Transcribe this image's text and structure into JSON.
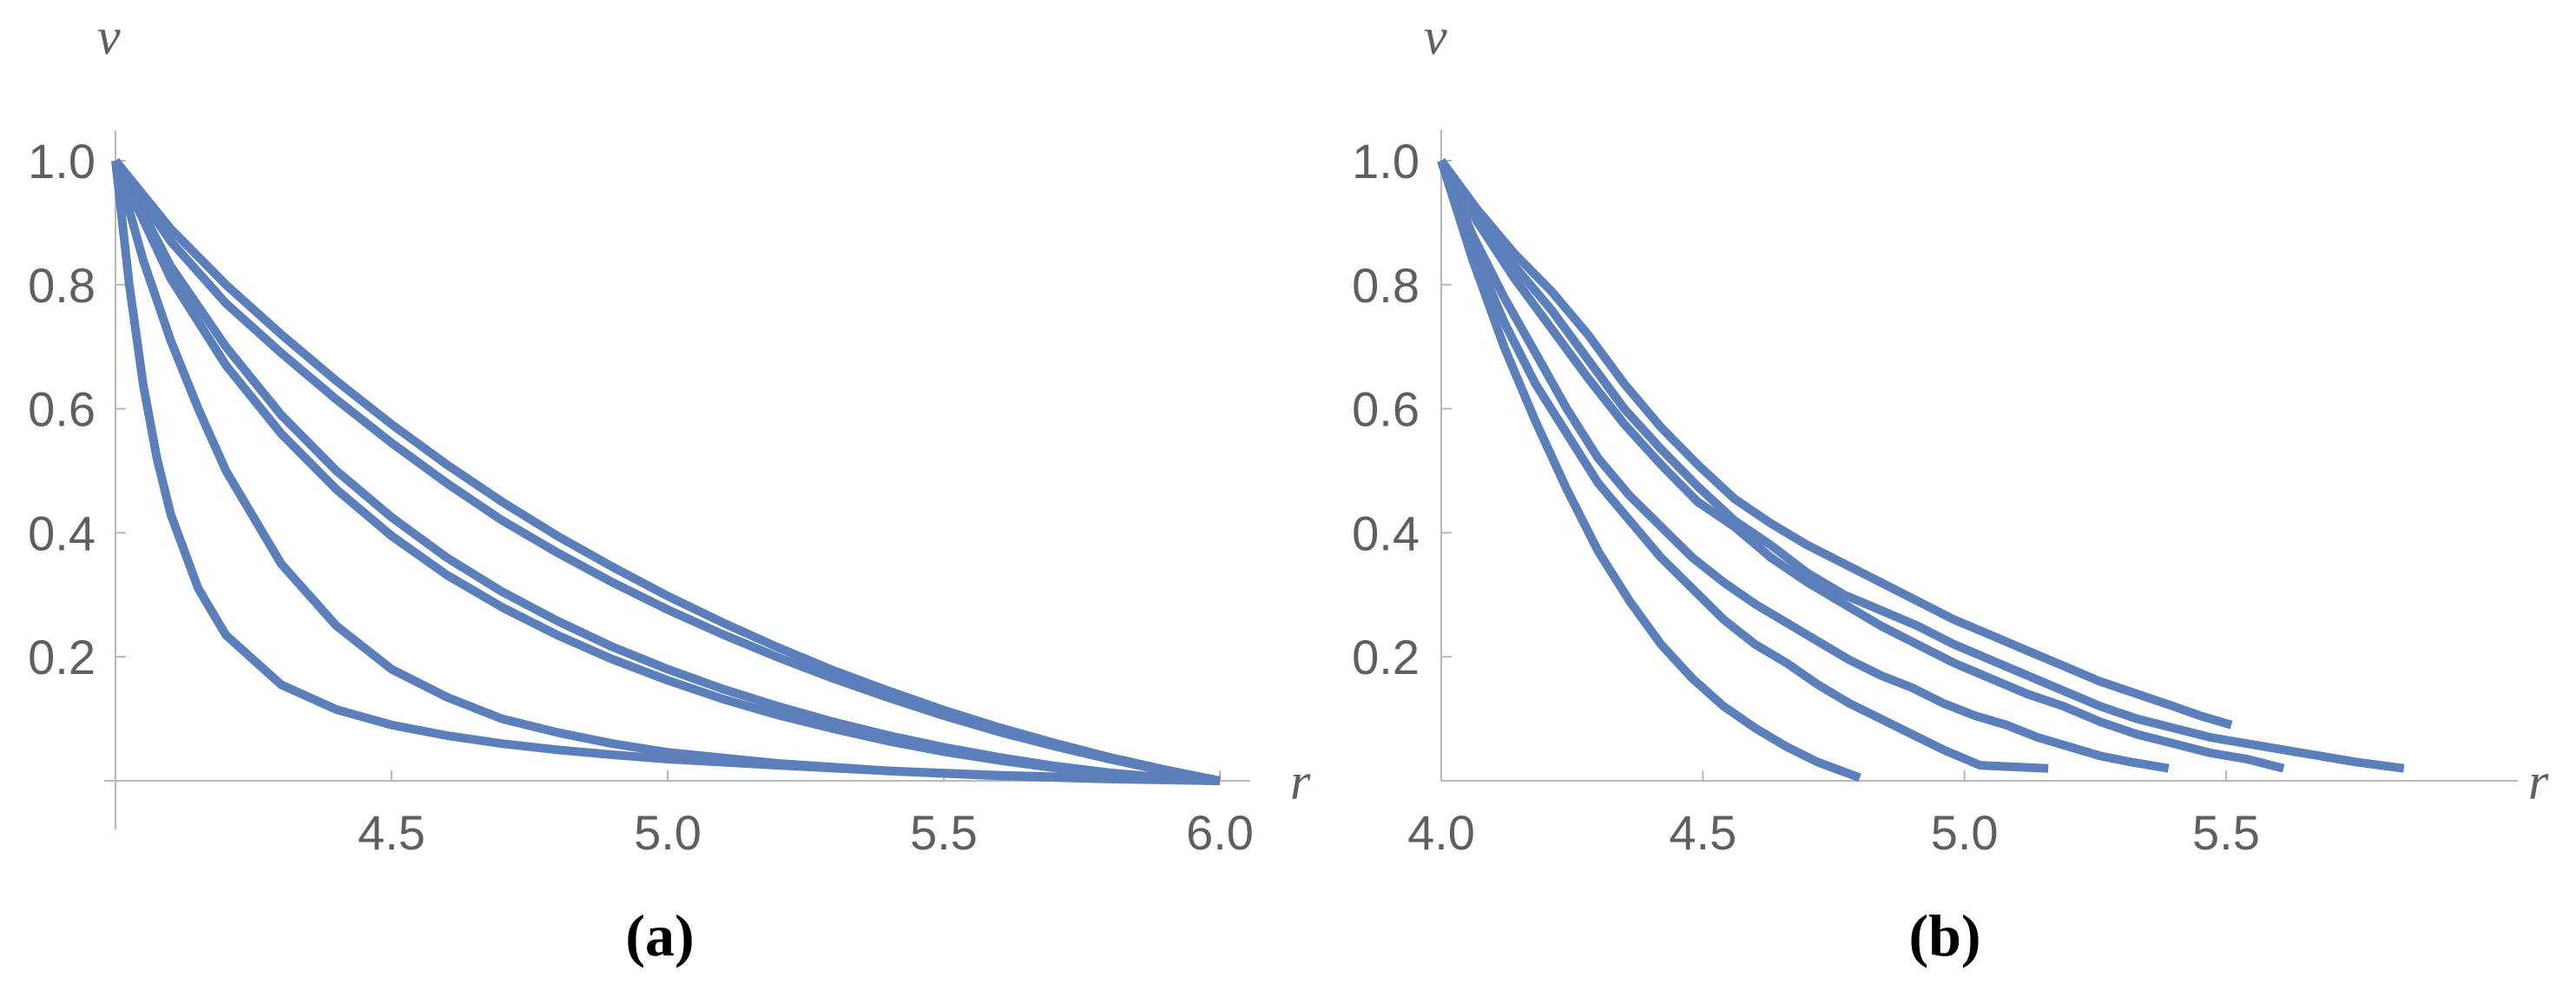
{
  "colors": {
    "line": "#5b7fba",
    "axis": "#b8b8b8",
    "text": "#5f5f5f"
  },
  "chart_data": [
    {
      "type": "line",
      "caption": "(a)",
      "xlabel": "r",
      "ylabel": "v",
      "xlim": [
        4.0,
        6.0
      ],
      "ylim": [
        0.0,
        1.05
      ],
      "xticks": [
        "4.5",
        "5.0",
        "5.5",
        "6.0"
      ],
      "yticks": [
        "0.2",
        "0.4",
        "0.6",
        "0.8",
        "1.0"
      ],
      "series": [
        {
          "x": [
            4.0,
            4.1,
            4.2,
            4.3,
            4.4,
            4.5,
            4.6,
            4.7,
            4.8,
            4.9,
            5.0,
            5.1,
            5.2,
            5.3,
            5.4,
            5.5,
            5.6,
            5.7,
            5.8,
            5.9,
            6.0
          ],
          "values": [
            1.0,
            0.89,
            0.8,
            0.72,
            0.645,
            0.575,
            0.51,
            0.45,
            0.395,
            0.345,
            0.298,
            0.255,
            0.215,
            0.178,
            0.145,
            0.114,
            0.086,
            0.061,
            0.038,
            0.018,
            0.0
          ]
        },
        {
          "x": [
            4.0,
            4.1,
            4.2,
            4.3,
            4.4,
            4.5,
            4.6,
            4.7,
            4.8,
            4.9,
            5.0,
            5.1,
            5.2,
            5.3,
            5.4,
            5.5,
            5.6,
            5.7,
            5.8,
            5.9,
            6.0
          ],
          "values": [
            1.0,
            0.87,
            0.77,
            0.69,
            0.615,
            0.545,
            0.48,
            0.42,
            0.368,
            0.32,
            0.276,
            0.236,
            0.199,
            0.165,
            0.134,
            0.105,
            0.079,
            0.056,
            0.035,
            0.016,
            0.0
          ]
        },
        {
          "x": [
            4.0,
            4.1,
            4.2,
            4.3,
            4.4,
            4.5,
            4.6,
            4.7,
            4.8,
            4.9,
            5.0,
            5.1,
            5.2,
            5.3,
            5.4,
            5.5,
            5.6,
            5.7,
            5.8,
            5.9,
            6.0
          ],
          "values": [
            1.0,
            0.83,
            0.7,
            0.59,
            0.5,
            0.425,
            0.36,
            0.305,
            0.258,
            0.216,
            0.18,
            0.148,
            0.12,
            0.095,
            0.073,
            0.054,
            0.038,
            0.024,
            0.013,
            0.005,
            0.0
          ]
        },
        {
          "x": [
            4.0,
            4.1,
            4.2,
            4.3,
            4.4,
            4.5,
            4.6,
            4.7,
            4.8,
            4.9,
            5.0,
            5.1,
            5.2,
            5.3,
            5.4,
            5.5,
            5.6,
            5.7,
            5.8,
            5.9,
            6.0
          ],
          "values": [
            1.0,
            0.81,
            0.67,
            0.56,
            0.47,
            0.395,
            0.332,
            0.28,
            0.235,
            0.196,
            0.162,
            0.132,
            0.106,
            0.084,
            0.064,
            0.047,
            0.033,
            0.021,
            0.011,
            0.004,
            0.0
          ]
        },
        {
          "x": [
            4.0,
            4.05,
            4.1,
            4.15,
            4.2,
            4.3,
            4.4,
            4.5,
            4.6,
            4.7,
            4.8,
            4.9,
            5.0,
            5.2,
            5.4,
            5.6,
            5.8,
            6.0
          ],
          "values": [
            1.0,
            0.84,
            0.71,
            0.6,
            0.5,
            0.35,
            0.25,
            0.18,
            0.135,
            0.1,
            0.078,
            0.06,
            0.046,
            0.028,
            0.016,
            0.008,
            0.003,
            0.0
          ]
        },
        {
          "x": [
            4.0,
            4.025,
            4.05,
            4.075,
            4.1,
            4.15,
            4.2,
            4.3,
            4.4,
            4.5,
            4.6,
            4.7,
            4.8,
            4.9,
            5.0,
            5.2,
            5.4,
            5.6,
            5.8,
            6.0
          ],
          "values": [
            1.0,
            0.8,
            0.64,
            0.52,
            0.43,
            0.31,
            0.235,
            0.155,
            0.115,
            0.09,
            0.073,
            0.06,
            0.05,
            0.042,
            0.035,
            0.025,
            0.016,
            0.009,
            0.004,
            0.0
          ]
        }
      ]
    },
    {
      "type": "line",
      "caption": "(b)",
      "xlabel": "r",
      "ylabel": "v",
      "xlim": [
        4.0,
        5.9
      ],
      "ylim": [
        0.0,
        1.05
      ],
      "xticks": [
        "4.0",
        "4.5",
        "5.0",
        "5.5"
      ],
      "yticks": [
        "0.2",
        "0.4",
        "0.6",
        "0.8",
        "1.0"
      ],
      "series": [
        {
          "x": [
            4.0,
            4.07,
            4.14,
            4.21,
            4.28,
            4.35,
            4.42,
            4.49,
            4.56,
            4.63,
            4.7,
            4.77,
            4.84,
            4.91,
            4.98,
            5.05,
            5.12,
            5.19,
            5.26,
            5.33,
            5.4,
            5.45,
            5.51
          ],
          "values": [
            1.0,
            0.92,
            0.85,
            0.79,
            0.72,
            0.64,
            0.57,
            0.51,
            0.455,
            0.415,
            0.38,
            0.35,
            0.32,
            0.29,
            0.26,
            0.235,
            0.21,
            0.185,
            0.16,
            0.14,
            0.12,
            0.105,
            0.09
          ]
        },
        {
          "x": [
            4.0,
            4.07,
            4.14,
            4.21,
            4.28,
            4.35,
            4.42,
            4.49,
            4.56,
            4.63,
            4.7,
            4.77,
            4.84,
            4.91,
            4.98,
            5.05,
            5.12,
            5.19,
            5.26,
            5.33,
            5.4,
            5.47,
            5.54,
            5.61,
            5.68,
            5.75,
            5.84
          ],
          "values": [
            1.0,
            0.91,
            0.83,
            0.76,
            0.68,
            0.6,
            0.535,
            0.475,
            0.42,
            0.38,
            0.335,
            0.3,
            0.275,
            0.25,
            0.22,
            0.195,
            0.17,
            0.145,
            0.12,
            0.1,
            0.085,
            0.07,
            0.06,
            0.05,
            0.04,
            0.03,
            0.02
          ]
        },
        {
          "x": [
            4.0,
            4.07,
            4.14,
            4.21,
            4.28,
            4.35,
            4.42,
            4.49,
            4.56,
            4.63,
            4.7,
            4.77,
            4.84,
            4.91,
            4.98,
            5.05,
            5.12,
            5.19,
            5.26,
            5.33,
            5.4,
            5.47,
            5.54,
            5.61
          ],
          "values": [
            1.0,
            0.9,
            0.81,
            0.73,
            0.65,
            0.575,
            0.51,
            0.45,
            0.41,
            0.36,
            0.32,
            0.285,
            0.25,
            0.22,
            0.19,
            0.165,
            0.14,
            0.12,
            0.095,
            0.075,
            0.06,
            0.045,
            0.035,
            0.02
          ]
        },
        {
          "x": [
            4.0,
            4.06,
            4.12,
            4.18,
            4.24,
            4.3,
            4.36,
            4.42,
            4.48,
            4.54,
            4.6,
            4.66,
            4.72,
            4.78,
            4.84,
            4.9,
            4.96,
            5.02,
            5.08,
            5.14,
            5.2,
            5.26,
            5.32,
            5.39
          ],
          "values": [
            1.0,
            0.88,
            0.78,
            0.69,
            0.6,
            0.52,
            0.46,
            0.41,
            0.36,
            0.32,
            0.285,
            0.255,
            0.225,
            0.195,
            0.17,
            0.15,
            0.125,
            0.105,
            0.09,
            0.07,
            0.055,
            0.04,
            0.03,
            0.02
          ]
        },
        {
          "x": [
            4.0,
            4.06,
            4.12,
            4.18,
            4.24,
            4.3,
            4.36,
            4.42,
            4.48,
            4.54,
            4.6,
            4.66,
            4.72,
            4.78,
            4.84,
            4.9,
            4.96,
            5.03,
            5.16
          ],
          "values": [
            1.0,
            0.86,
            0.74,
            0.64,
            0.56,
            0.48,
            0.42,
            0.36,
            0.31,
            0.26,
            0.22,
            0.19,
            0.155,
            0.125,
            0.1,
            0.075,
            0.05,
            0.025,
            0.02
          ]
        },
        {
          "x": [
            4.0,
            4.06,
            4.12,
            4.18,
            4.24,
            4.3,
            4.36,
            4.42,
            4.48,
            4.54,
            4.6,
            4.66,
            4.72,
            4.8
          ],
          "values": [
            1.0,
            0.84,
            0.7,
            0.58,
            0.47,
            0.37,
            0.29,
            0.22,
            0.165,
            0.12,
            0.085,
            0.055,
            0.03,
            0.005
          ]
        }
      ]
    }
  ]
}
